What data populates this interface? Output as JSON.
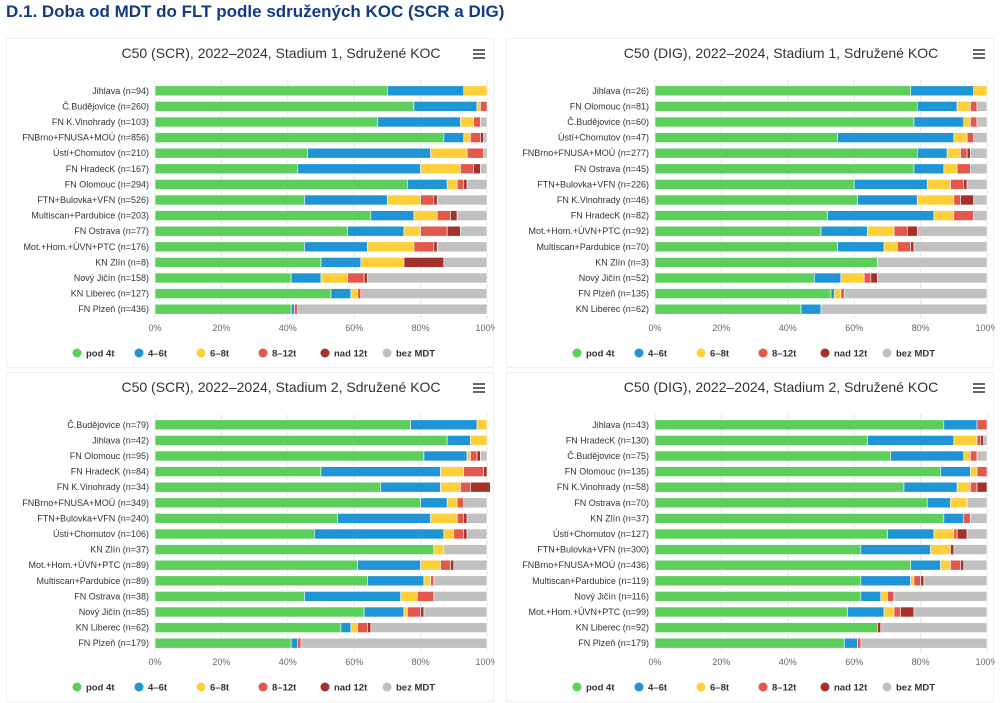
{
  "page": {
    "title": "D.1. Doba od MDT do FLT podle sdružených KOC (SCR a DIG)"
  },
  "legend": [
    {
      "name": "pod 4t",
      "color": "#5ccf5a"
    },
    {
      "name": "4–6t",
      "color": "#1f95d6"
    },
    {
      "name": "6–8t",
      "color": "#ffcf3a"
    },
    {
      "name": "8–12t",
      "color": "#e4574c"
    },
    {
      "name": "nad 12t",
      "color": "#a5312d"
    },
    {
      "name": "bez MDT",
      "color": "#c0c0c0"
    }
  ],
  "chart_data": [
    {
      "type": "bar",
      "stacking": "percent",
      "orientation": "horizontal",
      "title": "C50 (SCR), 2022–2024, Stadium 1, Sdružené KOC",
      "xlim": [
        0,
        100
      ],
      "x_ticks": [
        "0%",
        "20%",
        "40%",
        "60%",
        "80%",
        "100%"
      ],
      "grid": true,
      "legend_position": "bottom",
      "categories": [
        "Jihlava (n=94)",
        "Č.Budějovice (n=260)",
        "FN K.Vinohrady (n=103)",
        "FNBrno+FNUSA+MOÚ (n=856)",
        "Ústí+Chomutov (n=210)",
        "FN HradecK (n=167)",
        "FN Olomouc (n=294)",
        "FTN+Bulovka+VFN (n=526)",
        "Multiscan+Pardubice (n=203)",
        "FN Ostrava (n=77)",
        "Mot.+Hom.+ÚVN+PTC (n=176)",
        "KN Zlín (n=8)",
        "Nový Jičín (n=158)",
        "KN Liberec (n=127)",
        "FN Plzeň (n=436)"
      ],
      "series": [
        {
          "name": "pod 4t",
          "values": [
            70,
            78,
            67,
            87,
            46,
            43,
            76,
            45,
            65,
            58,
            45,
            50,
            41,
            53,
            41
          ]
        },
        {
          "name": "4–6t",
          "values": [
            23,
            19,
            25,
            6,
            37,
            37,
            12,
            25,
            13,
            17,
            19,
            12,
            9,
            6,
            1
          ]
        },
        {
          "name": "6–8t",
          "values": [
            7,
            1,
            4,
            2,
            11,
            12,
            3,
            10,
            7,
            5,
            14,
            13,
            8,
            2,
            0
          ]
        },
        {
          "name": "8–12t",
          "values": [
            0,
            2,
            2,
            3,
            5,
            4,
            2,
            4,
            4,
            8,
            6,
            0,
            5,
            1,
            1
          ]
        },
        {
          "name": "nad 12t",
          "values": [
            0,
            0,
            0,
            1,
            0,
            2,
            1,
            1,
            2,
            4,
            1,
            12,
            1,
            0,
            0
          ]
        },
        {
          "name": "bez MDT",
          "values": [
            0,
            0,
            2,
            1,
            1,
            2,
            6,
            15,
            9,
            8,
            15,
            13,
            36,
            38,
            57
          ]
        }
      ]
    },
    {
      "type": "bar",
      "stacking": "percent",
      "orientation": "horizontal",
      "title": "C50 (DIG), 2022–2024, Stadium 1, Sdružené KOC",
      "xlim": [
        0,
        100
      ],
      "x_ticks": [
        "0%",
        "20%",
        "40%",
        "60%",
        "80%",
        "100%"
      ],
      "grid": true,
      "legend_position": "bottom",
      "categories": [
        "Jihlava (n=26)",
        "FN Olomouc (n=81)",
        "Č.Budějovice (n=60)",
        "Ústí+Chomutov (n=47)",
        "FNBrno+FNUSA+MOÚ (n=277)",
        "FN Ostrava (n=45)",
        "FTN+Bulovka+VFN (n=226)",
        "FN K.Vinohrady (n=46)",
        "FN HradecK (n=82)",
        "Mot.+Hom.+ÚVN+PTC (n=92)",
        "Multiscan+Pardubice (n=70)",
        "KN Zlín (n=3)",
        "Nový Jičín (n=52)",
        "FN Plzeň (n=135)",
        "KN Liberec (n=62)"
      ],
      "series": [
        {
          "name": "pod 4t",
          "values": [
            77,
            79,
            78,
            55,
            79,
            78,
            60,
            61,
            52,
            50,
            55,
            67,
            48,
            53,
            44
          ]
        },
        {
          "name": "4–6t",
          "values": [
            19,
            12,
            15,
            35,
            9,
            9,
            22,
            18,
            32,
            14,
            14,
            0,
            8,
            1,
            6
          ]
        },
        {
          "name": "6–8t",
          "values": [
            4,
            4,
            2,
            4,
            4,
            4,
            7,
            11,
            6,
            8,
            4,
            0,
            7,
            2,
            0
          ]
        },
        {
          "name": "8–12t",
          "values": [
            0,
            2,
            2,
            2,
            2,
            4,
            4,
            2,
            6,
            4,
            4,
            0,
            2,
            1,
            0
          ]
        },
        {
          "name": "nad 12t",
          "values": [
            0,
            0,
            0,
            0,
            1,
            0,
            1,
            4,
            0,
            3,
            1,
            0,
            2,
            0,
            0
          ]
        },
        {
          "name": "bez MDT",
          "values": [
            0,
            3,
            3,
            4,
            5,
            5,
            6,
            4,
            4,
            21,
            22,
            33,
            33,
            43,
            50
          ]
        }
      ]
    },
    {
      "type": "bar",
      "stacking": "percent",
      "orientation": "horizontal",
      "title": "C50 (SCR), 2022–2024, Stadium 2, Sdružené KOC",
      "xlim": [
        0,
        100
      ],
      "x_ticks": [
        "0%",
        "20%",
        "40%",
        "60%",
        "80%",
        "100%"
      ],
      "grid": true,
      "legend_position": "bottom",
      "categories": [
        "Č.Budějovice (n=79)",
        "Jihlava (n=42)",
        "FN Olomouc (n=95)",
        "FN HradecK (n=84)",
        "FN K.Vinohrady (n=34)",
        "FNBrno+FNUSA+MOÚ (n=349)",
        "FTN+Bulovka+VFN (n=240)",
        "Ústí+Chomutov (n=106)",
        "KN Zlín (n=37)",
        "Mot.+Hom.+ÚVN+PTC (n=89)",
        "Multiscan+Pardubice (n=89)",
        "FN Ostrava (n=38)",
        "Nový Jičín (n=85)",
        "KN Liberec (n=62)",
        "FN Plzeň (n=179)"
      ],
      "series": [
        {
          "name": "pod 4t",
          "values": [
            77,
            88,
            81,
            50,
            68,
            80,
            55,
            48,
            84,
            61,
            64,
            45,
            63,
            56,
            41
          ]
        },
        {
          "name": "4–6t",
          "values": [
            20,
            7,
            13,
            36,
            18,
            8,
            28,
            39,
            0,
            19,
            17,
            29,
            12,
            3,
            2
          ]
        },
        {
          "name": "6–8t",
          "values": [
            3,
            5,
            1,
            7,
            6,
            3,
            8,
            3,
            3,
            6,
            2,
            5,
            1,
            2,
            0
          ]
        },
        {
          "name": "8–12t",
          "values": [
            0,
            0,
            2,
            6,
            3,
            2,
            2,
            3,
            0,
            3,
            1,
            5,
            4,
            3,
            1
          ]
        },
        {
          "name": "nad 12t",
          "values": [
            0,
            0,
            1,
            1,
            6,
            0,
            1,
            1,
            0,
            1,
            0,
            0,
            1,
            1,
            0
          ]
        },
        {
          "name": "bez MDT",
          "values": [
            0,
            0,
            2,
            0,
            0,
            7,
            6,
            6,
            13,
            10,
            16,
            16,
            19,
            35,
            56
          ]
        }
      ]
    },
    {
      "type": "bar",
      "stacking": "percent",
      "orientation": "horizontal",
      "title": "C50 (DIG), 2022–2024, Stadium 2, Sdružené KOC",
      "xlim": [
        0,
        100
      ],
      "x_ticks": [
        "0%",
        "20%",
        "40%",
        "60%",
        "80%",
        "100%"
      ],
      "grid": true,
      "legend_position": "bottom",
      "categories": [
        "Jihlava (n=43)",
        "FN HradecK (n=130)",
        "Č.Budějovice (n=75)",
        "FN Olomouc (n=135)",
        "FN K.Vinohrady (n=58)",
        "FN Ostrava (n=70)",
        "KN Zlín (n=37)",
        "Ústí+Chomutov (n=127)",
        "FTN+Bulovka+VFN (n=300)",
        "FNBrno+FNUSA+MOÚ (n=436)",
        "Multiscan+Pardubice (n=119)",
        "Nový Jičín (n=116)",
        "Mot.+Hom.+ÚVN+PTC (n=99)",
        "KN Liberec (n=92)",
        "FN Plzeň (n=179)"
      ],
      "series": [
        {
          "name": "pod 4t",
          "values": [
            87,
            64,
            71,
            86,
            75,
            82,
            87,
            70,
            62,
            77,
            62,
            62,
            58,
            67,
            57
          ]
        },
        {
          "name": "4–6t",
          "values": [
            10,
            26,
            22,
            9,
            16,
            7,
            6,
            14,
            21,
            9,
            15,
            6,
            11,
            0,
            4
          ]
        },
        {
          "name": "6–8t",
          "values": [
            0,
            7,
            2,
            2,
            4,
            5,
            0,
            6,
            6,
            3,
            1,
            2,
            3,
            0,
            0
          ]
        },
        {
          "name": "8–12t",
          "values": [
            3,
            1,
            2,
            3,
            2,
            0,
            2,
            1,
            0,
            3,
            2,
            2,
            2,
            0,
            1
          ]
        },
        {
          "name": "nad 12t",
          "values": [
            0,
            1,
            0,
            0,
            3,
            0,
            0,
            3,
            1,
            1,
            1,
            0,
            4,
            1,
            0
          ]
        },
        {
          "name": "bez MDT",
          "values": [
            0,
            1,
            3,
            0,
            0,
            6,
            5,
            6,
            10,
            7,
            19,
            28,
            22,
            32,
            38
          ]
        }
      ]
    }
  ]
}
